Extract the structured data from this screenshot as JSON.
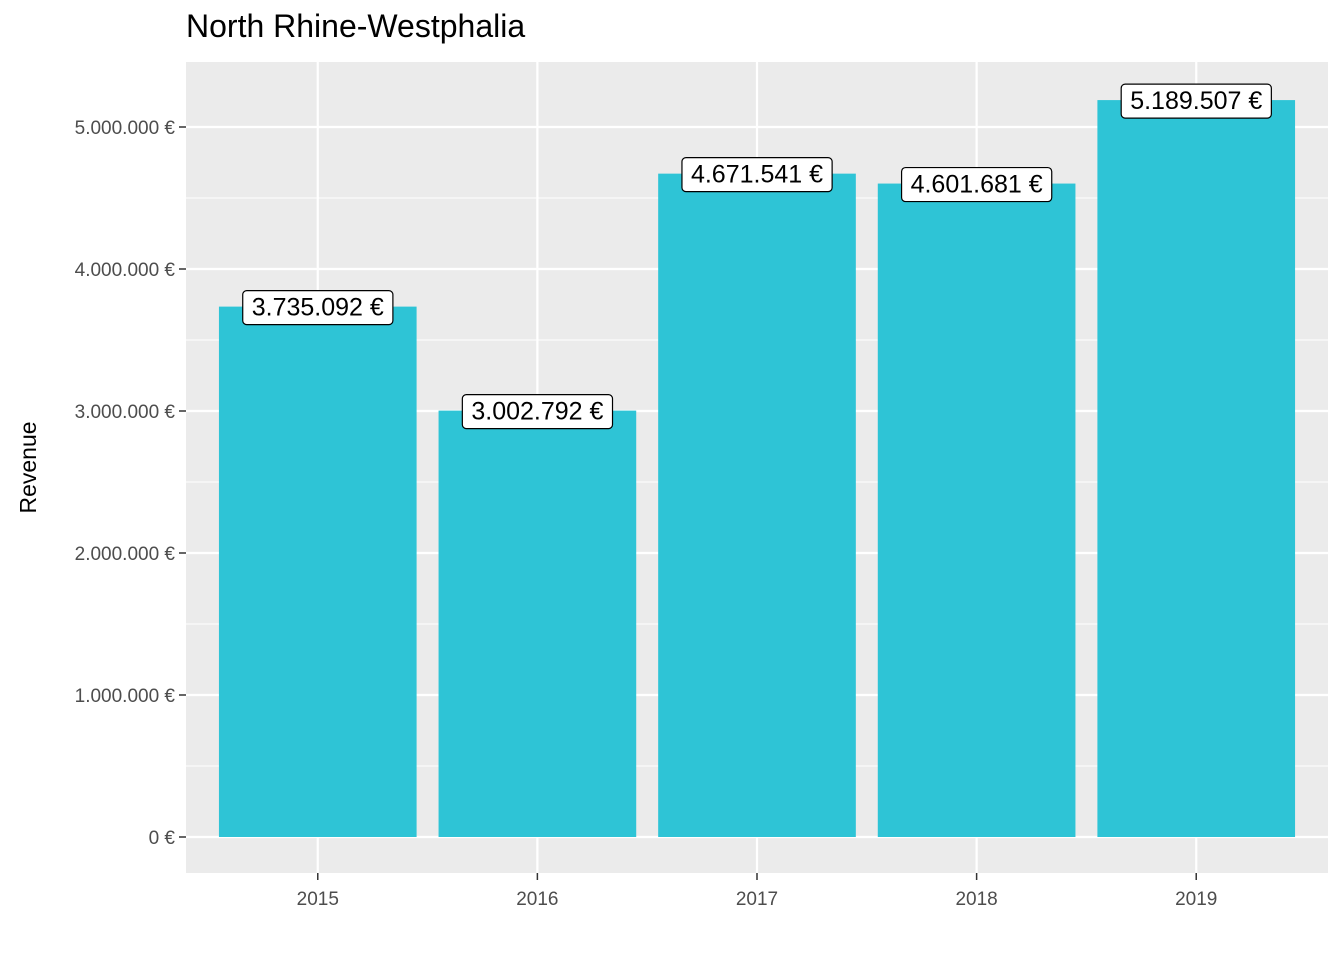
{
  "chart_data": {
    "type": "bar",
    "title": "North Rhine-Westphalia",
    "xlabel": "",
    "ylabel": "Revenue",
    "categories": [
      "2015",
      "2016",
      "2017",
      "2018",
      "2019"
    ],
    "values": [
      3735092,
      3002792,
      4671541,
      4601681,
      5189507
    ],
    "data_labels": [
      "3.735.092 €",
      "3.002.792 €",
      "4.671.541 €",
      "4.601.681 €",
      "5.189.507 €"
    ],
    "y_ticks": [
      0,
      1000000,
      2000000,
      3000000,
      4000000,
      5000000
    ],
    "y_tick_labels": [
      "0 €",
      "1.000.000 €",
      "2.000.000 €",
      "3.000.000 €",
      "4.000.000 €",
      "5.000.000 €"
    ],
    "ylim": [
      -250000,
      5450000
    ],
    "grid": true,
    "legend": "none",
    "bar_color": "#2EC4D6",
    "panel_color": "#EBEBEB",
    "grid_color": "#FFFFFF"
  }
}
